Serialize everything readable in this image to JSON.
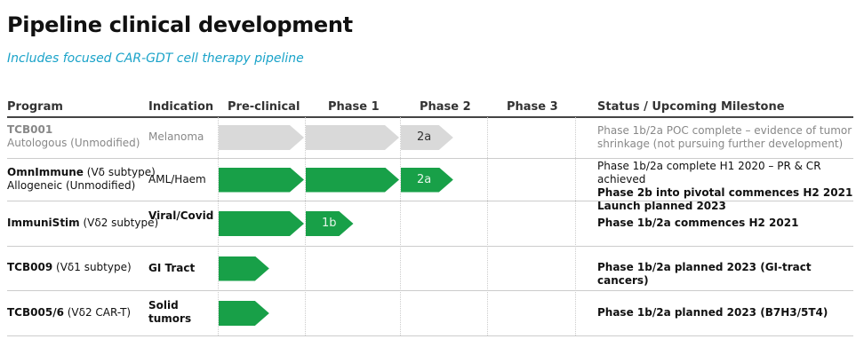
{
  "title": "Pipeline clinical development",
  "subtitle": "Includes focused CAR-GDT cell therapy pipeline",
  "headers": {
    "program": "Program",
    "indication": "Indication",
    "preclinical": "Pre-clinical",
    "phase1": "Phase 1",
    "phase2": "Phase 2",
    "phase3": "Phase 3",
    "status": "Status / Upcoming Milestone"
  },
  "colors": {
    "active": "#18a048",
    "inactive": "#d9d9d9",
    "subtitle": "#1aa3c9"
  },
  "rows": [
    {
      "program": "TCB001",
      "program_sub": "",
      "program_line2": "Autologous (Unmodified)",
      "indication": "Melanoma",
      "inactive": true,
      "progress_phases": [
        {
          "phase": "Pre-clinical",
          "fill": 1,
          "label": ""
        },
        {
          "phase": "Phase 1",
          "fill": 1,
          "label": ""
        },
        {
          "phase": "Phase 2",
          "fill": 0.6,
          "label": "2a"
        }
      ],
      "status": [
        {
          "text": "Phase 1b/2a POC complete – evidence of tumor shrinkage (not pursuing further development)",
          "bold": false
        }
      ]
    },
    {
      "program": "OmnImmune",
      "program_sub": "(Vδ subtype)",
      "program_line2": "Allogeneic (Unmodified)",
      "indication": "AML/Haem",
      "inactive": false,
      "progress_phases": [
        {
          "phase": "Pre-clinical",
          "fill": 1,
          "label": ""
        },
        {
          "phase": "Phase 1",
          "fill": 1,
          "label": ""
        },
        {
          "phase": "Phase 2",
          "fill": 0.6,
          "label": "2a"
        }
      ],
      "status": [
        {
          "text": "Phase 1b/2a complete H1 2020 – PR & CR achieved",
          "bold": false
        },
        {
          "text": "Phase 2b into pivotal commences H2 2021",
          "bold": true
        },
        {
          "text": "Launch planned 2023",
          "bold": true
        }
      ]
    },
    {
      "program": "ImmuniStim",
      "program_sub": "(Vδ2 subtype)",
      "program_line2": "",
      "indication": "Viral/Covid",
      "inactive": false,
      "progress_phases": [
        {
          "phase": "Pre-clinical",
          "fill": 1,
          "label": ""
        },
        {
          "phase": "Phase 1",
          "fill": 0.5,
          "label": "1b"
        }
      ],
      "status": [
        {
          "text": "Phase 1b/2a commences H2 2021",
          "bold": true
        }
      ]
    },
    {
      "program": "TCB009",
      "program_sub": "(Vδ1 subtype)",
      "program_line2": "",
      "indication": "GI Tract",
      "inactive": false,
      "progress_phases": [
        {
          "phase": "Pre-clinical",
          "fill": 0.58,
          "label": ""
        }
      ],
      "status": [
        {
          "text": "Phase 1b/2a planned 2023 (GI-tract cancers)",
          "bold": true
        }
      ]
    },
    {
      "program": "TCB005/6",
      "program_sub": "(Vδ2 CAR-T)",
      "program_line2": "",
      "indication": "Solid tumors",
      "inactive": false,
      "progress_phases": [
        {
          "phase": "Pre-clinical",
          "fill": 0.58,
          "label": ""
        }
      ],
      "status": [
        {
          "text": "Phase 1b/2a planned 2023 (B7H3/5T4)",
          "bold": true
        }
      ]
    }
  ]
}
